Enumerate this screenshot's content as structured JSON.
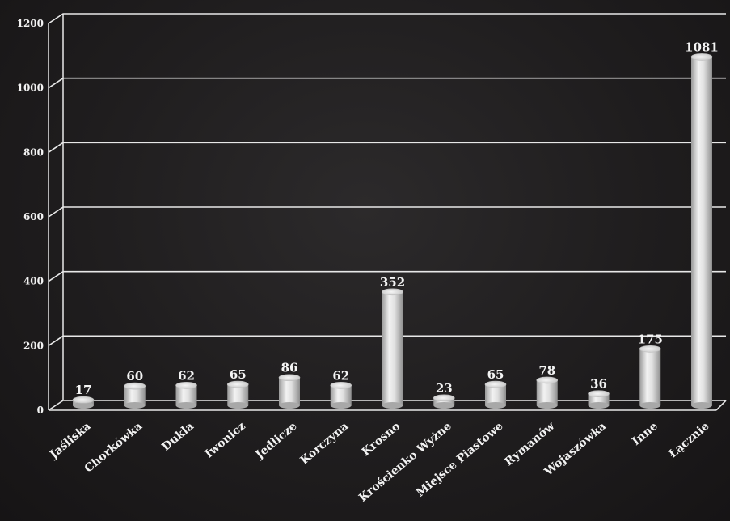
{
  "chart_data": {
    "type": "bar",
    "title": "",
    "xlabel": "",
    "ylabel": "",
    "ylim": [
      0,
      1200
    ],
    "yticks": [
      0,
      200,
      400,
      600,
      800,
      1000,
      1200
    ],
    "grid": true,
    "style": "3d-cylinder",
    "categories": [
      "Jaśliska",
      "Chorkówka",
      "Dukla",
      "Iwonicz",
      "Jedlicze",
      "Korczyna",
      "Krosno",
      "Krościenko Wyżne",
      "Miejsce Piastowe",
      "Rymanów",
      "Wojaszówka",
      "Inne",
      "Łącznie"
    ],
    "values": [
      17,
      60,
      62,
      65,
      86,
      62,
      352,
      23,
      65,
      78,
      36,
      175,
      1081
    ],
    "colors": {
      "bar": "#d9d9d9",
      "grid": "#e8e8e8",
      "text": "#f2f2f2"
    }
  }
}
